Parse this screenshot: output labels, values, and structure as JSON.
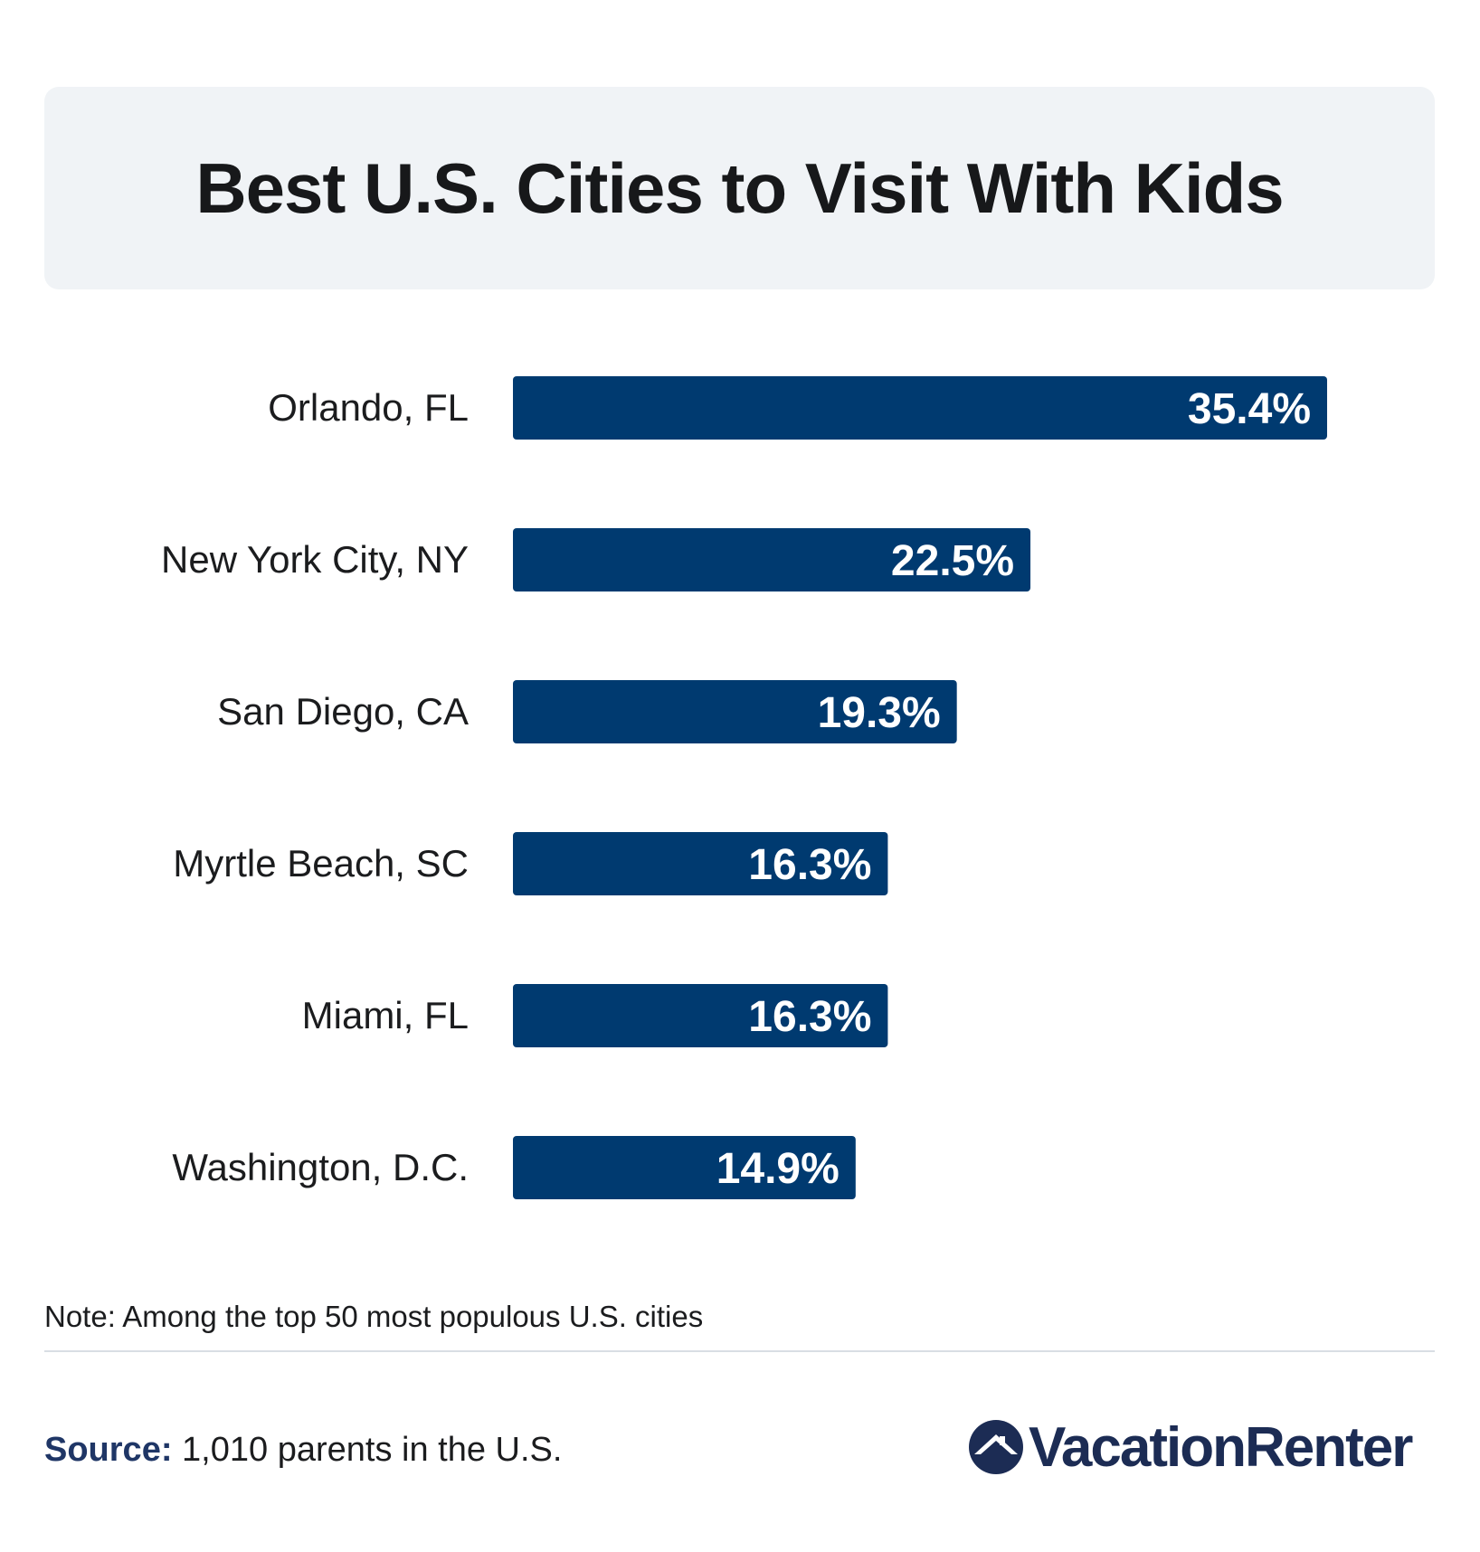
{
  "title": "Best U.S. Cities to Visit With Kids",
  "chart_data": {
    "type": "bar",
    "orientation": "horizontal",
    "categories": [
      "Orlando, FL",
      "New York City, NY",
      "San Diego, CA",
      "Myrtle Beach, SC",
      "Miami, FL",
      "Washington, D.C."
    ],
    "values": [
      35.4,
      22.5,
      19.3,
      16.3,
      16.3,
      14.9
    ],
    "value_labels": [
      "35.4%",
      "22.5%",
      "19.3%",
      "16.3%",
      "16.3%",
      "14.9%"
    ],
    "bar_color": "#003a70",
    "label_color": "#ffffff",
    "grid": false
  },
  "note": "Note: Among the top 50 most populous U.S. cities",
  "source": {
    "label": "Source:",
    "text": "1,010 parents in the U.S."
  },
  "logo": {
    "text": "VacationRenter",
    "icon": "house-circle-icon",
    "color": "#1c2c54"
  }
}
